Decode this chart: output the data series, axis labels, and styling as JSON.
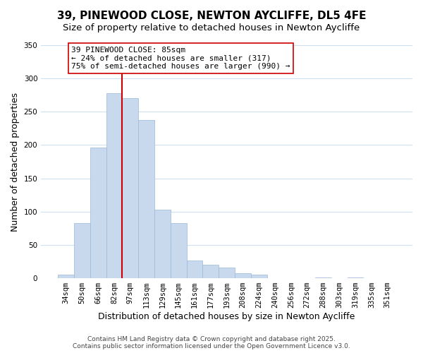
{
  "title": "39, PINEWOOD CLOSE, NEWTON AYCLIFFE, DL5 4FE",
  "subtitle": "Size of property relative to detached houses in Newton Aycliffe",
  "xlabel": "Distribution of detached houses by size in Newton Aycliffe",
  "ylabel": "Number of detached properties",
  "bar_values": [
    5,
    83,
    196,
    278,
    270,
    238,
    103,
    83,
    27,
    20,
    16,
    7,
    5,
    0,
    0,
    0,
    1,
    0,
    1,
    0,
    0
  ],
  "bar_labels": [
    "34sqm",
    "50sqm",
    "66sqm",
    "82sqm",
    "97sqm",
    "113sqm",
    "129sqm",
    "145sqm",
    "161sqm",
    "177sqm",
    "193sqm",
    "208sqm",
    "224sqm",
    "240sqm",
    "256sqm",
    "272sqm",
    "288sqm",
    "303sqm",
    "319sqm",
    "335sqm",
    "351sqm"
  ],
  "bar_color": "#c8d9ee",
  "bar_edge_color": "#9ab8d8",
  "vline_x_index": 3,
  "vline_color": "#cc0000",
  "ylim": [
    0,
    350
  ],
  "yticks": [
    0,
    50,
    100,
    150,
    200,
    250,
    300,
    350
  ],
  "annotation_text": "39 PINEWOOD CLOSE: 85sqm\n← 24% of detached houses are smaller (317)\n75% of semi-detached houses are larger (990) →",
  "annotation_box_color": "#ffffff",
  "annotation_box_edge": "#cc0000",
  "footer_line1": "Contains HM Land Registry data © Crown copyright and database right 2025.",
  "footer_line2": "Contains public sector information licensed under the Open Government Licence v3.0.",
  "background_color": "#ffffff",
  "grid_color": "#cfe0f0",
  "title_fontsize": 11,
  "subtitle_fontsize": 9.5,
  "label_fontsize": 9,
  "tick_fontsize": 7.5,
  "annotation_fontsize": 8,
  "footer_fontsize": 6.5
}
